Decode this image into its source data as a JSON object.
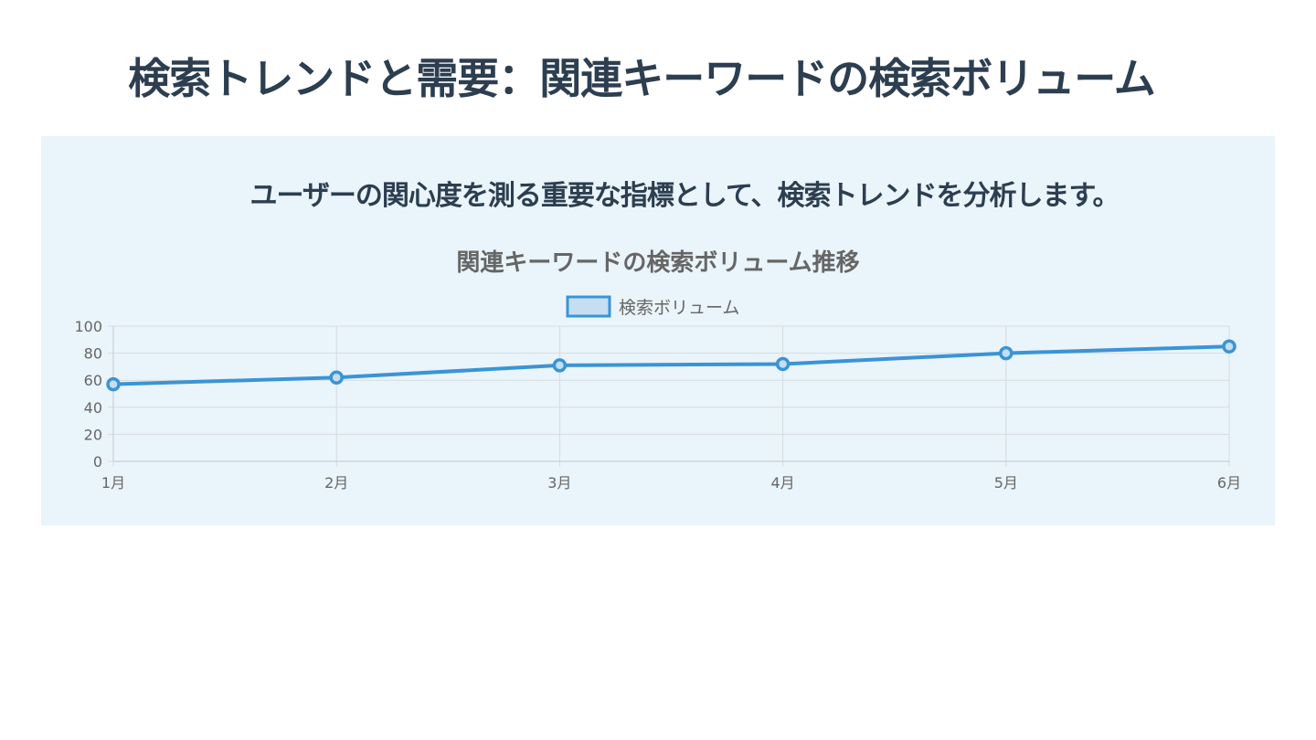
{
  "page": {
    "title": "検索トレンドと需要：関連キーワードの検索ボリューム",
    "subtitle": "ユーザーの関心度を測る重要な指標として、検索トレンドを分析します。"
  },
  "colors": {
    "title_text": "#2c3e50",
    "panel_background": "#eaf4fb",
    "series_line": "#3a94d6",
    "series_fill": "#c5dff1",
    "grid": "#d5dbe0",
    "label_text": "#666666"
  },
  "chart_data": {
    "type": "line",
    "title": "関連キーワードの検索ボリューム推移",
    "categories": [
      "1月",
      "2月",
      "3月",
      "4月",
      "5月",
      "6月"
    ],
    "series": [
      {
        "name": "検索ボリューム",
        "values": [
          57,
          62,
          71,
          72,
          80,
          85
        ]
      }
    ],
    "ylim": [
      0,
      100
    ],
    "yticks": [
      0,
      20,
      40,
      60,
      80,
      100
    ],
    "xlabel": "",
    "ylabel": "",
    "grid": true,
    "legend_position": "top"
  }
}
